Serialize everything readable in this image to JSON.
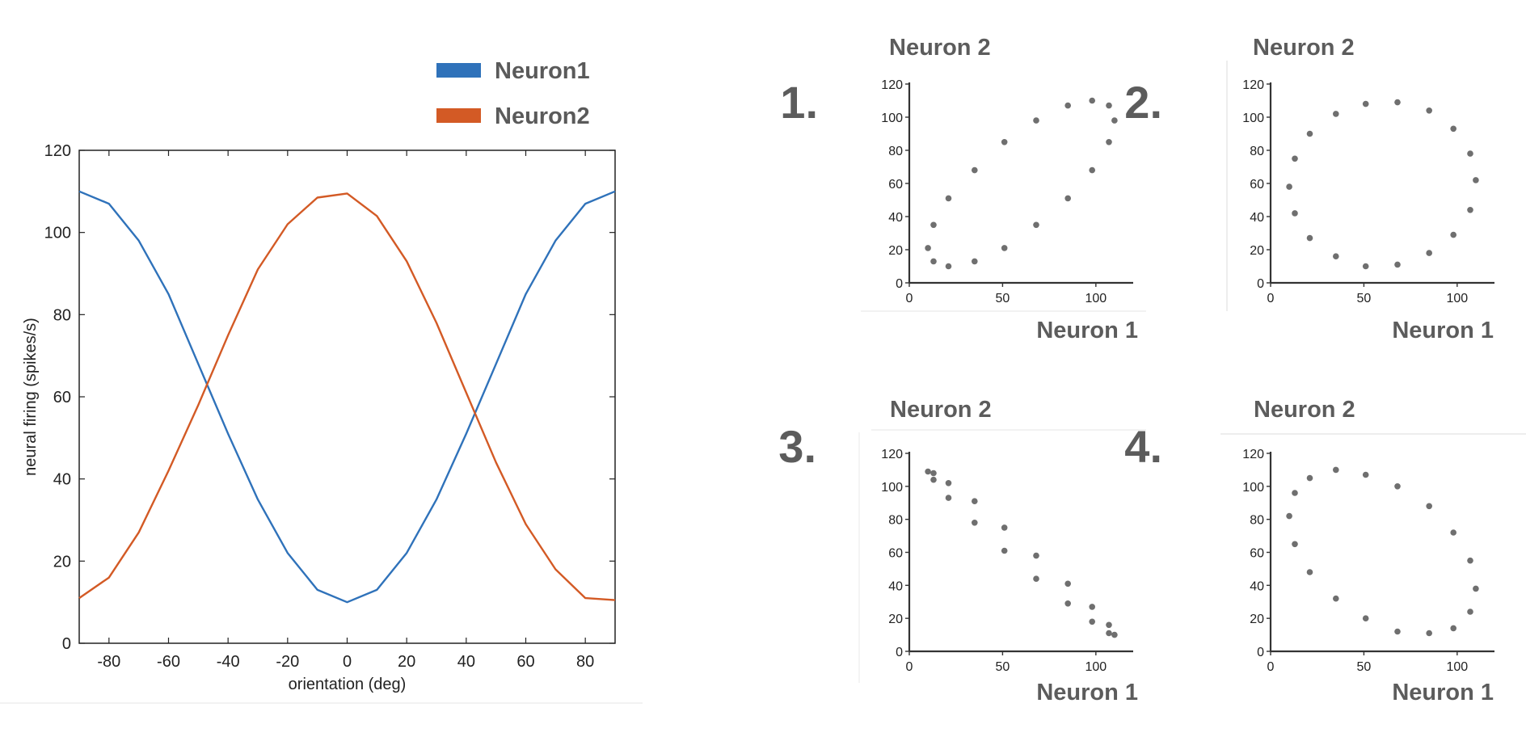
{
  "colors": {
    "neuron1": "#2f72ba",
    "neuron2": "#d35a25",
    "dot": "#6f6f6f",
    "axis": "#333333",
    "panel_title": "#5c5c5c",
    "tick": "#222222"
  },
  "chart_data": [
    {
      "type": "line",
      "title": "",
      "xlabel": "orientation (deg)",
      "ylabel": "neural firing (spikes/s)",
      "xlim": [
        -90,
        90
      ],
      "ylim": [
        0,
        120
      ],
      "xticks": [
        -80,
        -60,
        -40,
        -20,
        0,
        20,
        40,
        60,
        80
      ],
      "yticks": [
        0,
        20,
        40,
        60,
        80,
        100,
        120
      ],
      "legend_position": "top-right",
      "x": [
        -90,
        -80,
        -70,
        -60,
        -50,
        -40,
        -30,
        -20,
        -10,
        0,
        10,
        20,
        30,
        40,
        50,
        60,
        70,
        80,
        90
      ],
      "series": [
        {
          "name": "Neuron1",
          "color": "#2f72ba",
          "values": [
            110,
            107,
            98,
            85,
            68,
            51,
            35,
            22,
            13,
            10,
            13,
            22,
            35,
            51,
            68,
            85,
            98,
            107,
            110
          ]
        },
        {
          "name": "Neuron2",
          "color": "#d35a25",
          "values": [
            11,
            16,
            27,
            42,
            58,
            75,
            91,
            102,
            108.5,
            109.5,
            104,
            93,
            78,
            61,
            44,
            29,
            18,
            11,
            10.5
          ]
        }
      ]
    },
    {
      "type": "scatter",
      "label": "1.",
      "title": "Neuron 2",
      "xlabel": "Neuron 1",
      "xlim": [
        0,
        120
      ],
      "ylim": [
        0,
        120
      ],
      "xticks": [
        0,
        50,
        100
      ],
      "yticks": [
        0,
        20,
        40,
        60,
        80,
        100,
        120
      ],
      "points": [
        [
          10,
          21
        ],
        [
          13,
          13
        ],
        [
          13,
          35
        ],
        [
          21,
          10
        ],
        [
          21,
          51
        ],
        [
          35,
          68
        ],
        [
          51,
          85
        ],
        [
          68,
          98
        ],
        [
          85,
          107
        ],
        [
          98,
          110
        ],
        [
          107,
          107
        ],
        [
          110,
          98
        ],
        [
          107,
          85
        ],
        [
          98,
          68
        ],
        [
          85,
          51
        ],
        [
          68,
          35
        ],
        [
          51,
          21
        ],
        [
          35,
          13
        ]
      ]
    },
    {
      "type": "scatter",
      "label": "2.",
      "title": "Neuron 2",
      "xlabel": "Neuron 1",
      "xlim": [
        0,
        120
      ],
      "ylim": [
        0,
        120
      ],
      "xticks": [
        0,
        50,
        100
      ],
      "yticks": [
        0,
        20,
        40,
        60,
        80,
        100,
        120
      ],
      "points": [
        [
          10,
          58
        ],
        [
          13,
          75
        ],
        [
          21,
          90
        ],
        [
          35,
          102
        ],
        [
          51,
          108
        ],
        [
          68,
          109
        ],
        [
          85,
          104
        ],
        [
          98,
          93
        ],
        [
          107,
          78
        ],
        [
          110,
          62
        ],
        [
          107,
          44
        ],
        [
          98,
          29
        ],
        [
          85,
          18
        ],
        [
          68,
          11
        ],
        [
          51,
          10
        ],
        [
          35,
          16
        ],
        [
          21,
          27
        ],
        [
          13,
          42
        ]
      ]
    },
    {
      "type": "scatter",
      "label": "3.",
      "title": "Neuron 2",
      "xlabel": "Neuron 1",
      "xlim": [
        0,
        120
      ],
      "ylim": [
        0,
        120
      ],
      "xticks": [
        0,
        50,
        100
      ],
      "yticks": [
        0,
        20,
        40,
        60,
        80,
        100,
        120
      ],
      "points": [
        [
          10,
          109
        ],
        [
          13,
          108
        ],
        [
          13,
          104
        ],
        [
          21,
          102
        ],
        [
          21,
          93
        ],
        [
          35,
          91
        ],
        [
          35,
          78
        ],
        [
          51,
          75
        ],
        [
          51,
          61
        ],
        [
          68,
          58
        ],
        [
          68,
          44
        ],
        [
          85,
          41
        ],
        [
          85,
          29
        ],
        [
          98,
          27
        ],
        [
          98,
          18
        ],
        [
          107,
          16
        ],
        [
          107,
          11
        ],
        [
          110,
          10
        ]
      ]
    },
    {
      "type": "scatter",
      "label": "4.",
      "title": "Neuron 2",
      "xlabel": "Neuron 1",
      "xlim": [
        0,
        120
      ],
      "ylim": [
        0,
        120
      ],
      "xticks": [
        0,
        50,
        100
      ],
      "yticks": [
        0,
        20,
        40,
        60,
        80,
        100,
        120
      ],
      "points": [
        [
          10,
          82
        ],
        [
          13,
          96
        ],
        [
          21,
          105
        ],
        [
          35,
          110
        ],
        [
          51,
          107
        ],
        [
          68,
          100
        ],
        [
          85,
          88
        ],
        [
          98,
          72
        ],
        [
          107,
          55
        ],
        [
          110,
          38
        ],
        [
          107,
          24
        ],
        [
          98,
          14
        ],
        [
          85,
          11
        ],
        [
          68,
          12
        ],
        [
          51,
          20
        ],
        [
          35,
          32
        ],
        [
          21,
          48
        ],
        [
          13,
          65
        ]
      ]
    }
  ]
}
